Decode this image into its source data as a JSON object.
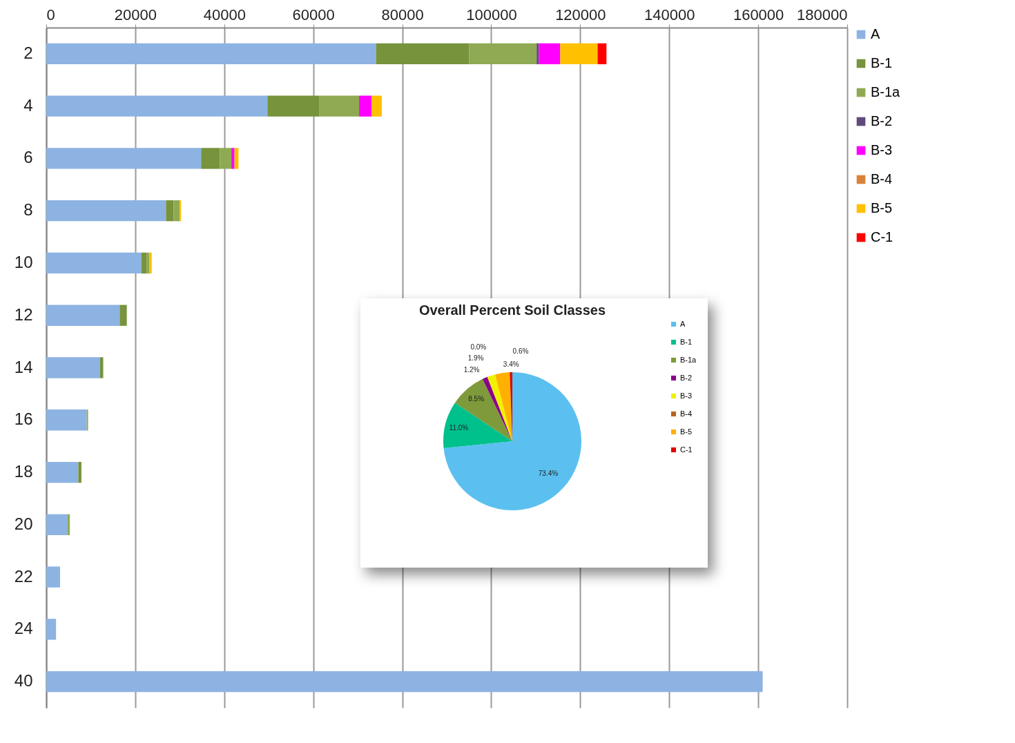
{
  "chart_data": [
    {
      "type": "bar",
      "orientation": "horizontal",
      "stacked": true,
      "categories": [
        "2",
        "4",
        "6",
        "8",
        "10",
        "12",
        "14",
        "16",
        "18",
        "20",
        "22",
        "24",
        "40"
      ],
      "series": [
        {
          "name": "A",
          "color": "#8db3e2",
          "values": [
            74100,
            49700,
            34800,
            26900,
            21400,
            16500,
            12100,
            9100,
            7200,
            4800,
            3100,
            2200,
            161000
          ]
        },
        {
          "name": "B-1",
          "color": "#77933c",
          "values": [
            20900,
            11600,
            4200,
            1700,
            1200,
            1600,
            700,
            null,
            700,
            null,
            null,
            null,
            null
          ]
        },
        {
          "name": "B-1a",
          "color": "#8faa52",
          "values": [
            15200,
            9000,
            2600,
            1400,
            600,
            null,
            null,
            300,
            null,
            500,
            null,
            null,
            null
          ]
        },
        {
          "name": "B-2",
          "color": "#604a7b",
          "values": [
            500,
            null,
            null,
            null,
            null,
            null,
            null,
            null,
            null,
            null,
            null,
            null,
            null
          ]
        },
        {
          "name": "B-3",
          "color": "#ff00ff",
          "values": [
            4800,
            2800,
            700,
            null,
            null,
            null,
            null,
            null,
            null,
            null,
            null,
            null,
            null
          ]
        },
        {
          "name": "B-4",
          "color": "#d9823b",
          "values": [
            null,
            null,
            null,
            null,
            null,
            null,
            null,
            null,
            null,
            null,
            null,
            null,
            null
          ]
        },
        {
          "name": "B-5",
          "color": "#ffc000",
          "values": [
            8400,
            2300,
            900,
            300,
            500,
            null,
            null,
            null,
            null,
            null,
            null,
            null,
            null
          ]
        },
        {
          "name": "C-1",
          "color": "#ff0000",
          "values": [
            2000,
            null,
            null,
            null,
            null,
            null,
            null,
            null,
            null,
            null,
            null,
            null,
            null
          ]
        }
      ],
      "xlim": [
        0,
        180000
      ],
      "xticks": [
        0,
        20000,
        40000,
        60000,
        80000,
        100000,
        120000,
        140000,
        160000,
        180000
      ],
      "grid": "x",
      "legend": "right"
    },
    {
      "type": "pie",
      "title": "Overall Percent Soil Classes",
      "categories": [
        "A",
        "B-1",
        "B-1a",
        "B-2",
        "B-3",
        "B-4",
        "B-5",
        "C-1"
      ],
      "values": [
        73.4,
        11.0,
        8.5,
        1.2,
        1.9,
        0.0,
        3.4,
        0.6
      ],
      "value_labels": [
        "73.4%",
        "11.0%",
        "8.5%",
        "1.2%",
        "1.9%",
        "0.0%",
        "3.4%",
        "0.6%"
      ],
      "colors": [
        "#5bc0f0",
        "#00c08c",
        "#7f9a3a",
        "#8b008b",
        "#f0f000",
        "#b5651d",
        "#ffb000",
        "#e00000"
      ],
      "legend": "right"
    }
  ]
}
